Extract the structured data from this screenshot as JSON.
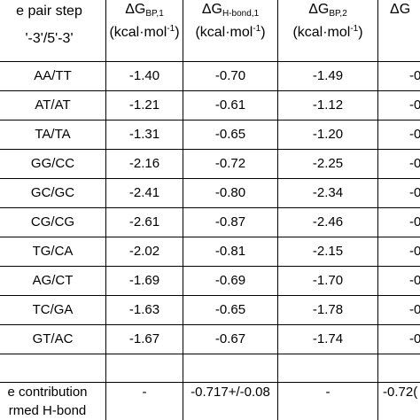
{
  "header": {
    "col0_line1": "e pair step",
    "col0_line2": "'-3'/5'-3'",
    "delta": "ΔG",
    "col1_sub": "BP,1",
    "col2_sub": "H-bond,1",
    "col3_sub": "BP,2",
    "col4_sub": "",
    "unit_prefix": "(kcal·mol",
    "unit_sup": "-1",
    "unit_suffix": ")"
  },
  "rows": [
    {
      "step": "AA/TT",
      "v1": "-1.40",
      "v2": "-0.70",
      "v3": "-1.49",
      "v4": "-0"
    },
    {
      "step": "AT/AT",
      "v1": "-1.21",
      "v2": "-0.61",
      "v3": "-1.12",
      "v4": "-0"
    },
    {
      "step": "TA/TA",
      "v1": "-1.31",
      "v2": "-0.65",
      "v3": "-1.20",
      "v4": "-0"
    },
    {
      "step": "GG/CC",
      "v1": "-2.16",
      "v2": "-0.72",
      "v3": "-2.25",
      "v4": "-0"
    },
    {
      "step": "GC/GC",
      "v1": "-2.41",
      "v2": "-0.80",
      "v3": "-2.34",
      "v4": "-0"
    },
    {
      "step": "CG/CG",
      "v1": "-2.61",
      "v2": "-0.87",
      "v3": "-2.46",
      "v4": "-0"
    },
    {
      "step": "TG/CA",
      "v1": "-2.02",
      "v2": "-0.81",
      "v3": "-2.15",
      "v4": "-0"
    },
    {
      "step": "AG/CT",
      "v1": "-1.69",
      "v2": "-0.69",
      "v3": "-1.70",
      "v4": "-0"
    },
    {
      "step": "TC/GA",
      "v1": "-1.63",
      "v2": "-0.65",
      "v3": "-1.78",
      "v4": "-0"
    },
    {
      "step": "GT/AC",
      "v1": "-1.67",
      "v2": "-0.67",
      "v3": "-1.74",
      "v4": "-0"
    }
  ],
  "footer": {
    "label_line1": "e contribution",
    "label_line2": "rmed H-bond",
    "v1": "-",
    "v2": "-0.717+/-0.08",
    "v3": "-",
    "v4": "-0.72("
  }
}
